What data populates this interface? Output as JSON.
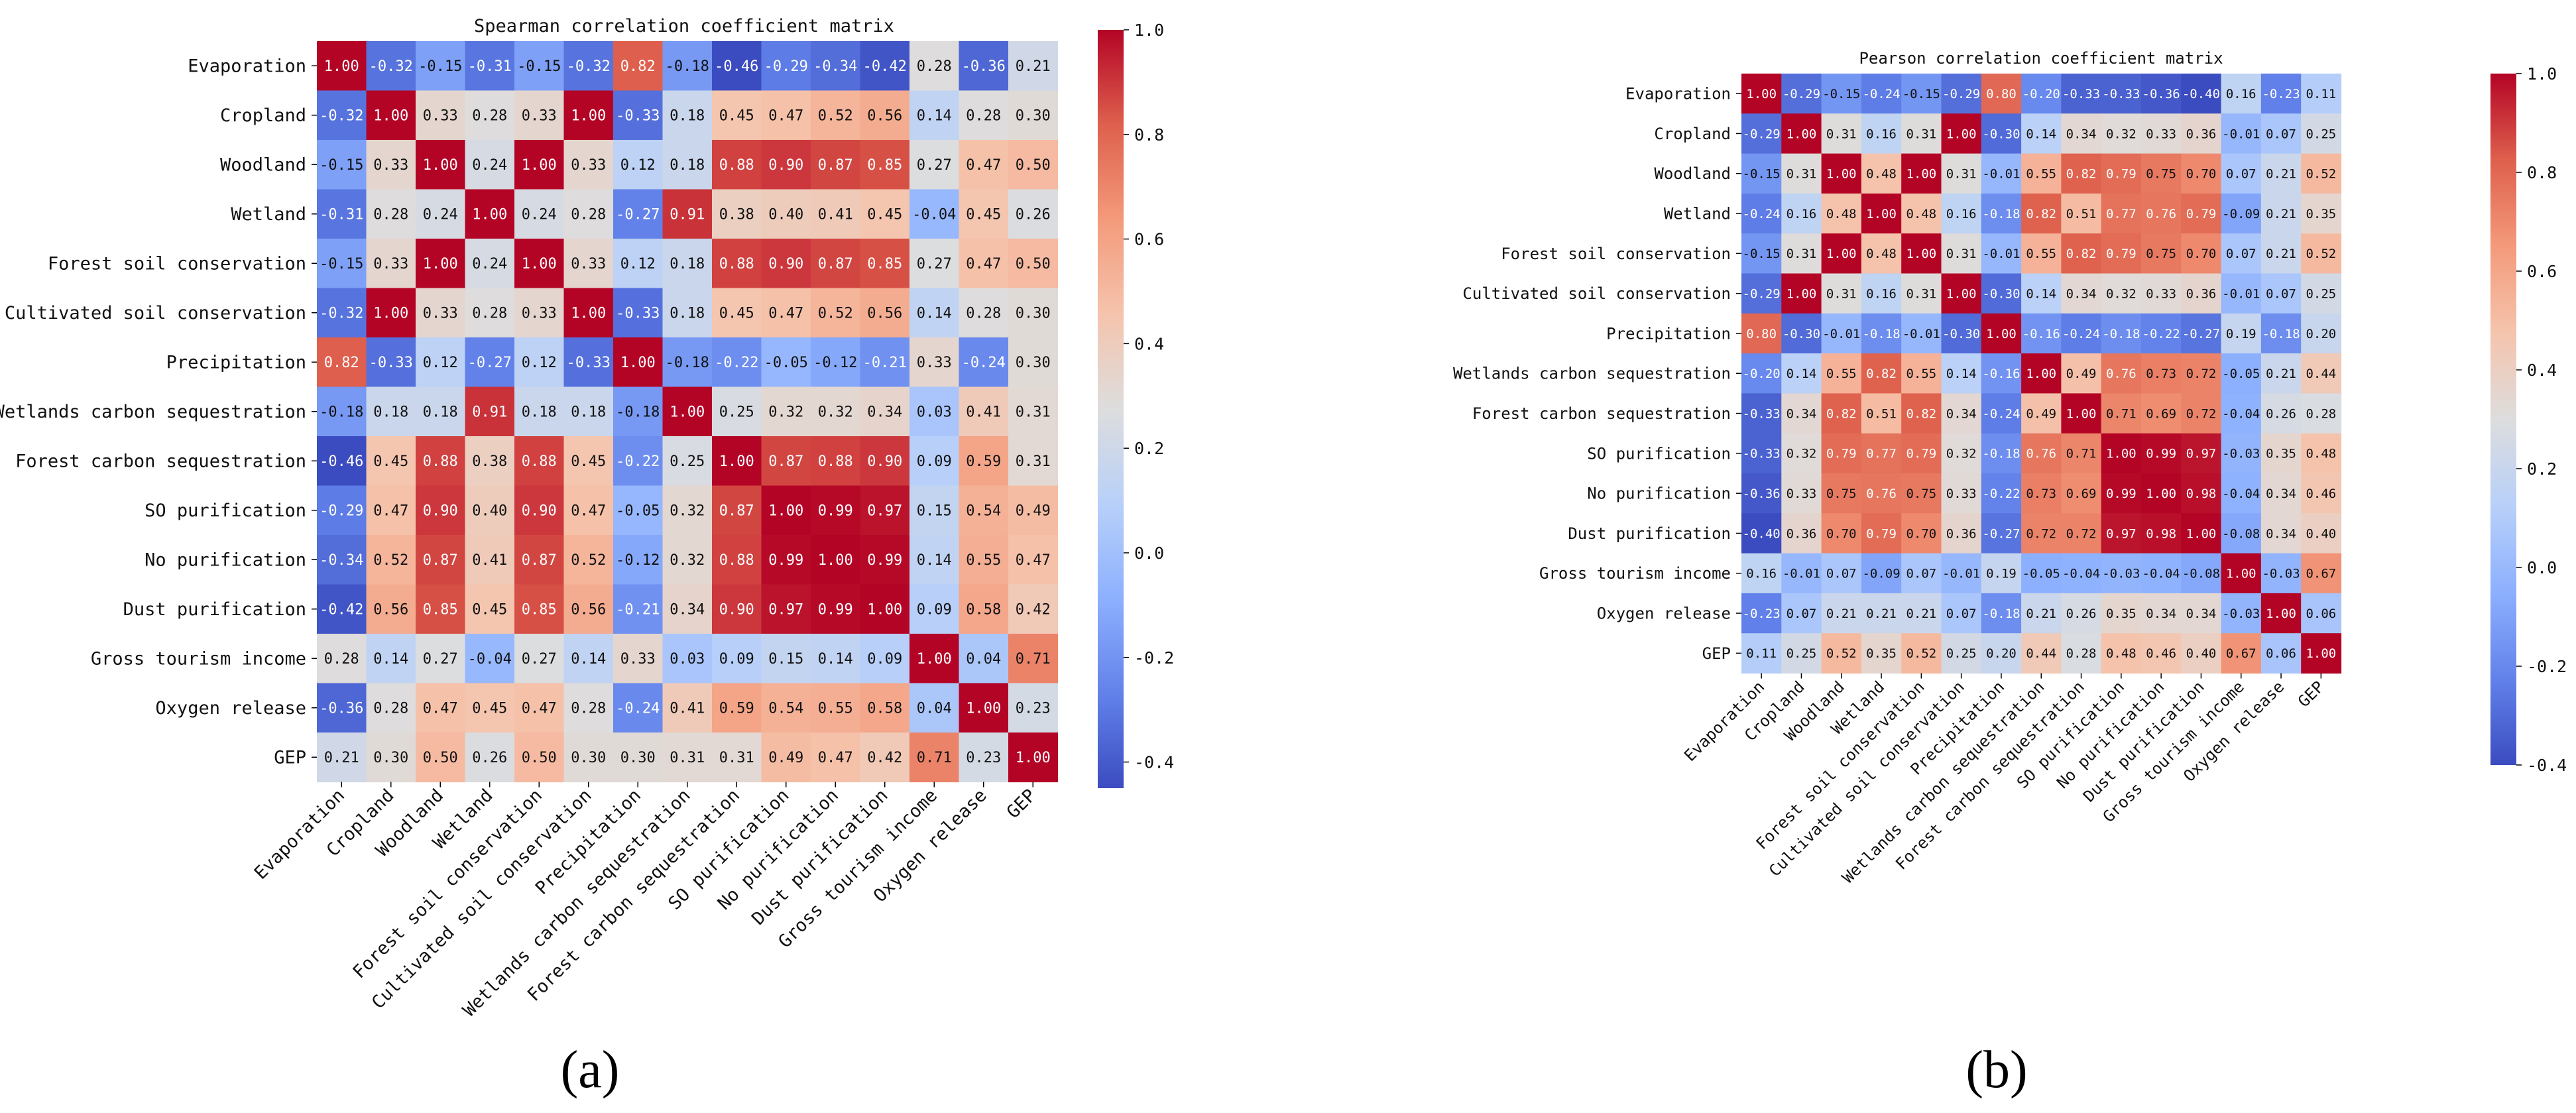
{
  "colors": {
    "low": "#3b4cc0",
    "mid": "#dddddd",
    "high": "#b40426"
  },
  "chart_data": [
    {
      "type": "heatmap",
      "panel": "(a)",
      "title": "Spearman correlation coefficient matrix",
      "labels": [
        "Evaporation",
        "Cropland",
        "Woodland",
        "Wetland",
        "Forest soil conservation",
        "Cultivated soil conservation",
        "Precipitation",
        "Wetlands carbon sequestration",
        "Forest carbon sequestration",
        "SO purification",
        "No purification",
        "Dust purification",
        "Gross tourism income",
        "Oxygen release",
        "GEP"
      ],
      "colorbar": {
        "range": [
          -0.45,
          1.0
        ],
        "ticks": [
          "1.0",
          "0.8",
          "0.6",
          "0.4",
          "0.2",
          "0.0",
          "-0.2",
          "-0.4"
        ]
      },
      "values": [
        [
          1.0,
          -0.32,
          -0.15,
          -0.31,
          -0.15,
          -0.32,
          0.82,
          -0.18,
          -0.46,
          -0.29,
          -0.34,
          -0.42,
          0.28,
          -0.36,
          0.21
        ],
        [
          -0.32,
          1.0,
          0.33,
          0.28,
          0.33,
          1.0,
          -0.33,
          0.18,
          0.45,
          0.47,
          0.52,
          0.56,
          0.14,
          0.28,
          0.3
        ],
        [
          -0.15,
          0.33,
          1.0,
          0.24,
          1.0,
          0.33,
          0.12,
          0.18,
          0.88,
          0.9,
          0.87,
          0.85,
          0.27,
          0.47,
          0.5
        ],
        [
          -0.31,
          0.28,
          0.24,
          1.0,
          0.24,
          0.28,
          -0.27,
          0.91,
          0.38,
          0.4,
          0.41,
          0.45,
          -0.04,
          0.45,
          0.26
        ],
        [
          -0.15,
          0.33,
          1.0,
          0.24,
          1.0,
          0.33,
          0.12,
          0.18,
          0.88,
          0.9,
          0.87,
          0.85,
          0.27,
          0.47,
          0.5
        ],
        [
          -0.32,
          1.0,
          0.33,
          0.28,
          0.33,
          1.0,
          -0.33,
          0.18,
          0.45,
          0.47,
          0.52,
          0.56,
          0.14,
          0.28,
          0.3
        ],
        [
          0.82,
          -0.33,
          0.12,
          -0.27,
          0.12,
          -0.33,
          1.0,
          -0.18,
          -0.22,
          -0.05,
          -0.12,
          -0.21,
          0.33,
          -0.24,
          0.3
        ],
        [
          -0.18,
          0.18,
          0.18,
          0.91,
          0.18,
          0.18,
          -0.18,
          1.0,
          0.25,
          0.32,
          0.32,
          0.34,
          0.03,
          0.41,
          0.31
        ],
        [
          -0.46,
          0.45,
          0.88,
          0.38,
          0.88,
          0.45,
          -0.22,
          0.25,
          1.0,
          0.87,
          0.88,
          0.9,
          0.09,
          0.59,
          0.31
        ],
        [
          -0.29,
          0.47,
          0.9,
          0.4,
          0.9,
          0.47,
          -0.05,
          0.32,
          0.87,
          1.0,
          0.99,
          0.97,
          0.15,
          0.54,
          0.49
        ],
        [
          -0.34,
          0.52,
          0.87,
          0.41,
          0.87,
          0.52,
          -0.12,
          0.32,
          0.88,
          0.99,
          1.0,
          0.99,
          0.14,
          0.55,
          0.47
        ],
        [
          -0.42,
          0.56,
          0.85,
          0.45,
          0.85,
          0.56,
          -0.21,
          0.34,
          0.9,
          0.97,
          0.99,
          1.0,
          0.09,
          0.58,
          0.42
        ],
        [
          0.28,
          0.14,
          0.27,
          -0.04,
          0.27,
          0.14,
          0.33,
          0.03,
          0.09,
          0.15,
          0.14,
          0.09,
          1.0,
          0.04,
          0.71
        ],
        [
          -0.36,
          0.28,
          0.47,
          0.45,
          0.47,
          0.28,
          -0.24,
          0.41,
          0.59,
          0.54,
          0.55,
          0.58,
          0.04,
          1.0,
          0.23
        ],
        [
          0.21,
          0.3,
          0.5,
          0.26,
          0.5,
          0.3,
          0.3,
          0.31,
          0.31,
          0.49,
          0.47,
          0.42,
          0.71,
          0.23,
          1.0
        ]
      ]
    },
    {
      "type": "heatmap",
      "panel": "(b)",
      "title": "Pearson correlation coefficient matrix",
      "labels": [
        "Evaporation",
        "Cropland",
        "Woodland",
        "Wetland",
        "Forest soil conservation",
        "Cultivated soil conservation",
        "Precipitation",
        "Wetlands carbon sequestration",
        "Forest carbon sequestration",
        "SO purification",
        "No purification",
        "Dust purification",
        "Gross tourism income",
        "Oxygen release",
        "GEP"
      ],
      "colorbar": {
        "range": [
          -0.4,
          1.0
        ],
        "ticks": [
          "1.0",
          "0.8",
          "0.6",
          "0.4",
          "0.2",
          "0.0",
          "-0.2",
          "-0.4"
        ]
      },
      "values": [
        [
          1.0,
          -0.29,
          -0.15,
          -0.24,
          -0.15,
          -0.29,
          0.8,
          -0.2,
          -0.33,
          -0.33,
          -0.36,
          -0.4,
          0.16,
          -0.23,
          0.11
        ],
        [
          -0.29,
          1.0,
          0.31,
          0.16,
          0.31,
          1.0,
          -0.3,
          0.14,
          0.34,
          0.32,
          0.33,
          0.36,
          -0.01,
          0.07,
          0.25
        ],
        [
          -0.15,
          0.31,
          1.0,
          0.48,
          1.0,
          0.31,
          -0.01,
          0.55,
          0.82,
          0.79,
          0.75,
          0.7,
          0.07,
          0.21,
          0.52
        ],
        [
          -0.24,
          0.16,
          0.48,
          1.0,
          0.48,
          0.16,
          -0.18,
          0.82,
          0.51,
          0.77,
          0.76,
          0.79,
          -0.09,
          0.21,
          0.35
        ],
        [
          -0.15,
          0.31,
          1.0,
          0.48,
          1.0,
          0.31,
          -0.01,
          0.55,
          0.82,
          0.79,
          0.75,
          0.7,
          0.07,
          0.21,
          0.52
        ],
        [
          -0.29,
          1.0,
          0.31,
          0.16,
          0.31,
          1.0,
          -0.3,
          0.14,
          0.34,
          0.32,
          0.33,
          0.36,
          -0.01,
          0.07,
          0.25
        ],
        [
          0.8,
          -0.3,
          -0.01,
          -0.18,
          -0.01,
          -0.3,
          1.0,
          -0.16,
          -0.24,
          -0.18,
          -0.22,
          -0.27,
          0.19,
          -0.18,
          0.2
        ],
        [
          -0.2,
          0.14,
          0.55,
          0.82,
          0.55,
          0.14,
          -0.16,
          1.0,
          0.49,
          0.76,
          0.73,
          0.72,
          -0.05,
          0.21,
          0.44
        ],
        [
          -0.33,
          0.34,
          0.82,
          0.51,
          0.82,
          0.34,
          -0.24,
          0.49,
          1.0,
          0.71,
          0.69,
          0.72,
          -0.04,
          0.26,
          0.28
        ],
        [
          -0.33,
          0.32,
          0.79,
          0.77,
          0.79,
          0.32,
          -0.18,
          0.76,
          0.71,
          1.0,
          0.99,
          0.97,
          -0.03,
          0.35,
          0.48
        ],
        [
          -0.36,
          0.33,
          0.75,
          0.76,
          0.75,
          0.33,
          -0.22,
          0.73,
          0.69,
          0.99,
          1.0,
          0.98,
          -0.04,
          0.34,
          0.46
        ],
        [
          -0.4,
          0.36,
          0.7,
          0.79,
          0.7,
          0.36,
          -0.27,
          0.72,
          0.72,
          0.97,
          0.98,
          1.0,
          -0.08,
          0.34,
          0.4
        ],
        [
          0.16,
          -0.01,
          0.07,
          -0.09,
          0.07,
          -0.01,
          0.19,
          -0.05,
          -0.04,
          -0.03,
          -0.04,
          -0.08,
          1.0,
          -0.03,
          0.67
        ],
        [
          -0.23,
          0.07,
          0.21,
          0.21,
          0.21,
          0.07,
          -0.18,
          0.21,
          0.26,
          0.35,
          0.34,
          0.34,
          -0.03,
          1.0,
          0.06
        ],
        [
          0.11,
          0.25,
          0.52,
          0.35,
          0.52,
          0.25,
          0.2,
          0.44,
          0.28,
          0.48,
          0.46,
          0.4,
          0.67,
          0.06,
          1.0
        ]
      ]
    }
  ]
}
